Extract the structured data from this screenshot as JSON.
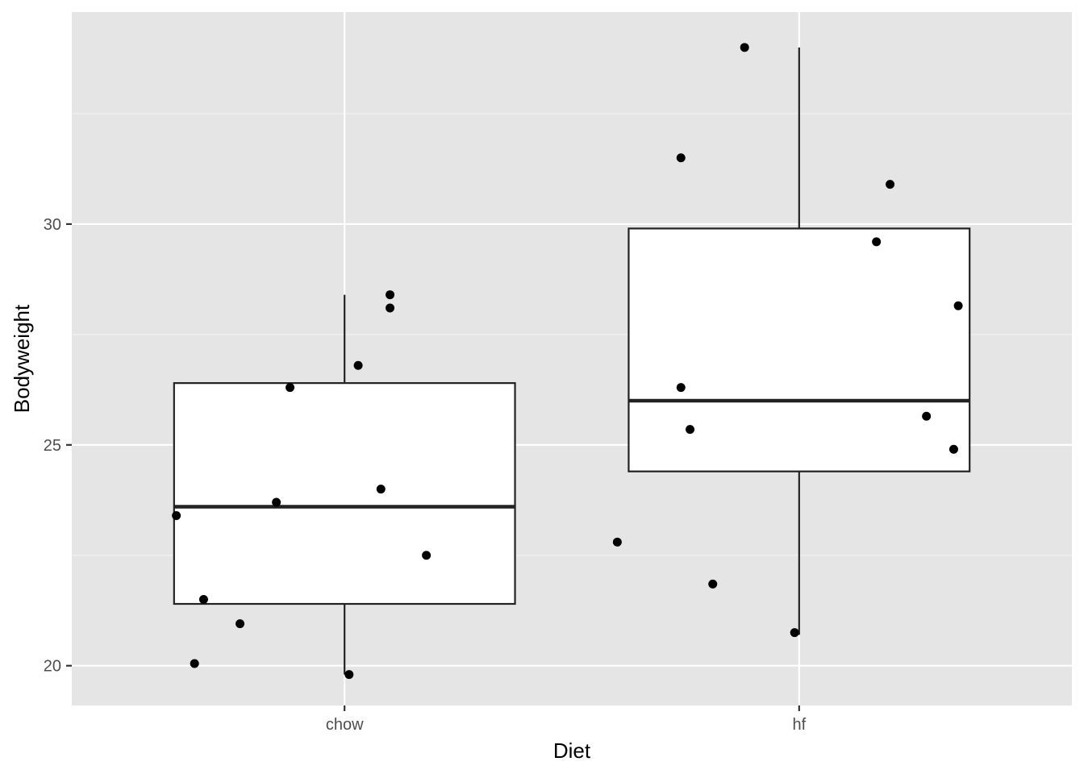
{
  "chart_data": {
    "type": "boxplot",
    "xlabel": "Diet",
    "ylabel": "Bodyweight",
    "categories": [
      "chow",
      "hf"
    ],
    "ylim": [
      19.1,
      34.8
    ],
    "yticks": [
      20,
      25,
      30
    ],
    "grid": true,
    "boxes": [
      {
        "category": "chow",
        "whisker_low": 19.8,
        "q1": 21.4,
        "median": 23.6,
        "q3": 26.4,
        "whisker_high": 28.4
      },
      {
        "category": "hf",
        "whisker_low": 20.7,
        "q1": 24.4,
        "median": 26.0,
        "q3": 29.9,
        "whisker_high": 34.0
      }
    ],
    "points": [
      {
        "category": "chow",
        "y": 23.4,
        "jitter": -0.37
      },
      {
        "category": "chow",
        "y": 21.5,
        "jitter": -0.31
      },
      {
        "category": "chow",
        "y": 20.05,
        "jitter": -0.33
      },
      {
        "category": "chow",
        "y": 20.95,
        "jitter": -0.23
      },
      {
        "category": "chow",
        "y": 23.7,
        "jitter": -0.15
      },
      {
        "category": "chow",
        "y": 26.3,
        "jitter": -0.12
      },
      {
        "category": "chow",
        "y": 26.8,
        "jitter": 0.03
      },
      {
        "category": "chow",
        "y": 28.4,
        "jitter": 0.1
      },
      {
        "category": "chow",
        "y": 28.1,
        "jitter": 0.1
      },
      {
        "category": "chow",
        "y": 24.0,
        "jitter": 0.08
      },
      {
        "category": "chow",
        "y": 22.5,
        "jitter": 0.18
      },
      {
        "category": "chow",
        "y": 19.8,
        "jitter": 0.01
      },
      {
        "category": "hf",
        "y": 22.8,
        "jitter": -0.4
      },
      {
        "category": "hf",
        "y": 31.5,
        "jitter": -0.26
      },
      {
        "category": "hf",
        "y": 34.0,
        "jitter": -0.12
      },
      {
        "category": "hf",
        "y": 26.3,
        "jitter": -0.26
      },
      {
        "category": "hf",
        "y": 25.35,
        "jitter": -0.24
      },
      {
        "category": "hf",
        "y": 21.85,
        "jitter": -0.19
      },
      {
        "category": "hf",
        "y": 20.75,
        "jitter": -0.01
      },
      {
        "category": "hf",
        "y": 29.6,
        "jitter": 0.17
      },
      {
        "category": "hf",
        "y": 30.9,
        "jitter": 0.2
      },
      {
        "category": "hf",
        "y": 25.65,
        "jitter": 0.28
      },
      {
        "category": "hf",
        "y": 24.9,
        "jitter": 0.34
      },
      {
        "category": "hf",
        "y": 28.15,
        "jitter": 0.35
      }
    ]
  }
}
